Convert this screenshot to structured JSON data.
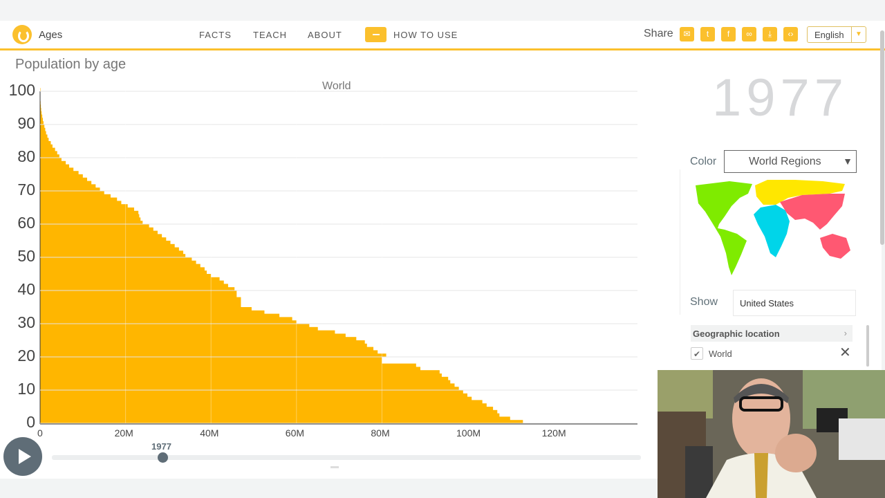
{
  "app": {
    "title": "Ages",
    "nav": [
      "FACTS",
      "TEACH",
      "ABOUT"
    ],
    "how_to_use": "HOW TO USE",
    "share_label": "Share",
    "share_icons": [
      "mail-icon",
      "twitter-icon",
      "facebook-icon",
      "link-icon",
      "download-icon",
      "embed-icon"
    ],
    "language": "English"
  },
  "page": {
    "title": "Population by age",
    "year": "1977",
    "slider_year": "1977"
  },
  "colors": {
    "accent": "#fbc02d",
    "bars": "#ffb600",
    "control": "#5f6d77",
    "region_americas": "#7feb00",
    "region_europe": "#ffe700",
    "region_africa": "#00d5e9",
    "region_asia": "#ff5872"
  },
  "side": {
    "color_label": "Color",
    "color_value": "World Regions",
    "show_label": "Show",
    "show_value": "United States",
    "group_title": "Geographic location",
    "selected_item": "World"
  },
  "chart_data": {
    "type": "bar",
    "orientation": "horizontal",
    "title": "World",
    "xlabel": "",
    "ylabel": "",
    "xlim": [
      0,
      140000000
    ],
    "ylim": [
      0,
      100
    ],
    "y_ticks": [
      "0",
      "10",
      "20",
      "30",
      "40",
      "50",
      "60",
      "70",
      "80",
      "90",
      "100"
    ],
    "x_ticks": [
      "0",
      "20M",
      "40M",
      "60M",
      "80M",
      "100M",
      "120M"
    ],
    "grid": true,
    "series": [
      {
        "ages": [
          0,
          1,
          2,
          3,
          4,
          5,
          6,
          7,
          8,
          9,
          10,
          11,
          12,
          13,
          14,
          15,
          16,
          17,
          18,
          19,
          20,
          21,
          22,
          23,
          24,
          25,
          26,
          27,
          28,
          29,
          30,
          31,
          32,
          33,
          34,
          35,
          36,
          37,
          38,
          39,
          40,
          41,
          42,
          43,
          44,
          45,
          46,
          47,
          48,
          49,
          50,
          51,
          52,
          53,
          54,
          55,
          56,
          57,
          58,
          59,
          60,
          61,
          62,
          63,
          64,
          65,
          66,
          67,
          68,
          69,
          70,
          71,
          72,
          73,
          74,
          75,
          76,
          77,
          78,
          79,
          80,
          81,
          82,
          83,
          84,
          85,
          86,
          87,
          88,
          89,
          90,
          91,
          92,
          93,
          94,
          95,
          96,
          97,
          98,
          99,
          100
        ],
        "values": [
          113000000,
          110000000,
          107500000,
          107000000,
          106000000,
          104500000,
          103500000,
          101000000,
          100000000,
          99000000,
          98000000,
          97000000,
          96000000,
          95500000,
          94000000,
          93500000,
          89000000,
          88000000,
          80000000,
          80000000,
          81000000,
          79000000,
          78000000,
          76500000,
          76000000,
          74000000,
          71500000,
          69000000,
          65000000,
          63000000,
          60000000,
          59000000,
          56000000,
          52500000,
          49500000,
          47000000,
          47000000,
          47000000,
          46000000,
          46000000,
          45500000,
          44000000,
          43000000,
          42000000,
          40000000,
          39000000,
          38500000,
          37500000,
          36500000,
          35500000,
          34000000,
          33500000,
          32500000,
          31500000,
          30500000,
          29500000,
          28500000,
          27500000,
          26500000,
          25500000,
          24000000,
          23500000,
          23200000,
          23000000,
          22000000,
          20500000,
          19000000,
          18000000,
          16500000,
          15000000,
          14000000,
          13000000,
          12000000,
          11000000,
          10000000,
          9000000,
          7800000,
          6800000,
          6000000,
          5000000,
          4500000,
          4000000,
          3500000,
          2900000,
          2500000,
          2000000,
          1700000,
          1400000,
          1200000,
          1000000,
          800000,
          650000,
          500000,
          350000,
          250000,
          180000,
          120000,
          80000,
          50000,
          30000,
          15000
        ]
      }
    ]
  }
}
